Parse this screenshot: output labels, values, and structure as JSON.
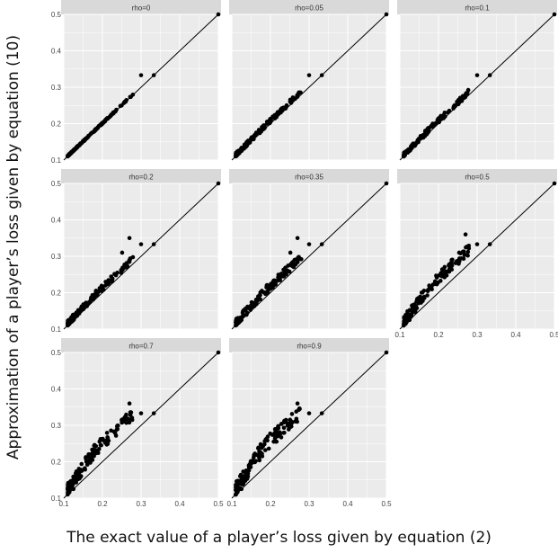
{
  "figure": {
    "ylabel": "Approximation of a player’s loss given by equation (10)",
    "xlabel": "The exact value of a player’s loss given by equation (2)"
  },
  "colors": {
    "panel_bg": "#ebebeb",
    "strip_bg": "#d9d9d9",
    "grid": "#ffffff",
    "point": "#000000",
    "line": "#000000"
  },
  "chart_data": {
    "type": "scatter",
    "facets": [
      {
        "label": "rho=0",
        "bias": 0.0,
        "spread": 0.004
      },
      {
        "label": "rho=0.05",
        "bias": 0.006,
        "spread": 0.012
      },
      {
        "label": "rho=0.1",
        "bias": 0.006,
        "spread": 0.014
      },
      {
        "label": "rho=0.2",
        "bias": 0.01,
        "spread": 0.018
      },
      {
        "label": "rho=0.35",
        "bias": 0.015,
        "spread": 0.022
      },
      {
        "label": "rho=0.5",
        "bias": 0.035,
        "spread": 0.03
      },
      {
        "label": "rho=0.7",
        "bias": 0.045,
        "spread": 0.035
      },
      {
        "label": "rho=0.9",
        "bias": 0.05,
        "spread": 0.04
      }
    ],
    "xlim": [
      0.1,
      0.5
    ],
    "ylim": [
      0.1,
      0.5
    ],
    "xticks": [
      "0.1",
      "0.2",
      "0.3",
      "0.4",
      "0.5"
    ],
    "yticks": [
      "0.1",
      "0.2",
      "0.3",
      "0.4",
      "0.5"
    ],
    "reference_line": "y = x",
    "outliers": [
      [
        0.5,
        0.5
      ],
      [
        0.333,
        0.333
      ],
      [
        0.3,
        0.333
      ]
    ]
  }
}
